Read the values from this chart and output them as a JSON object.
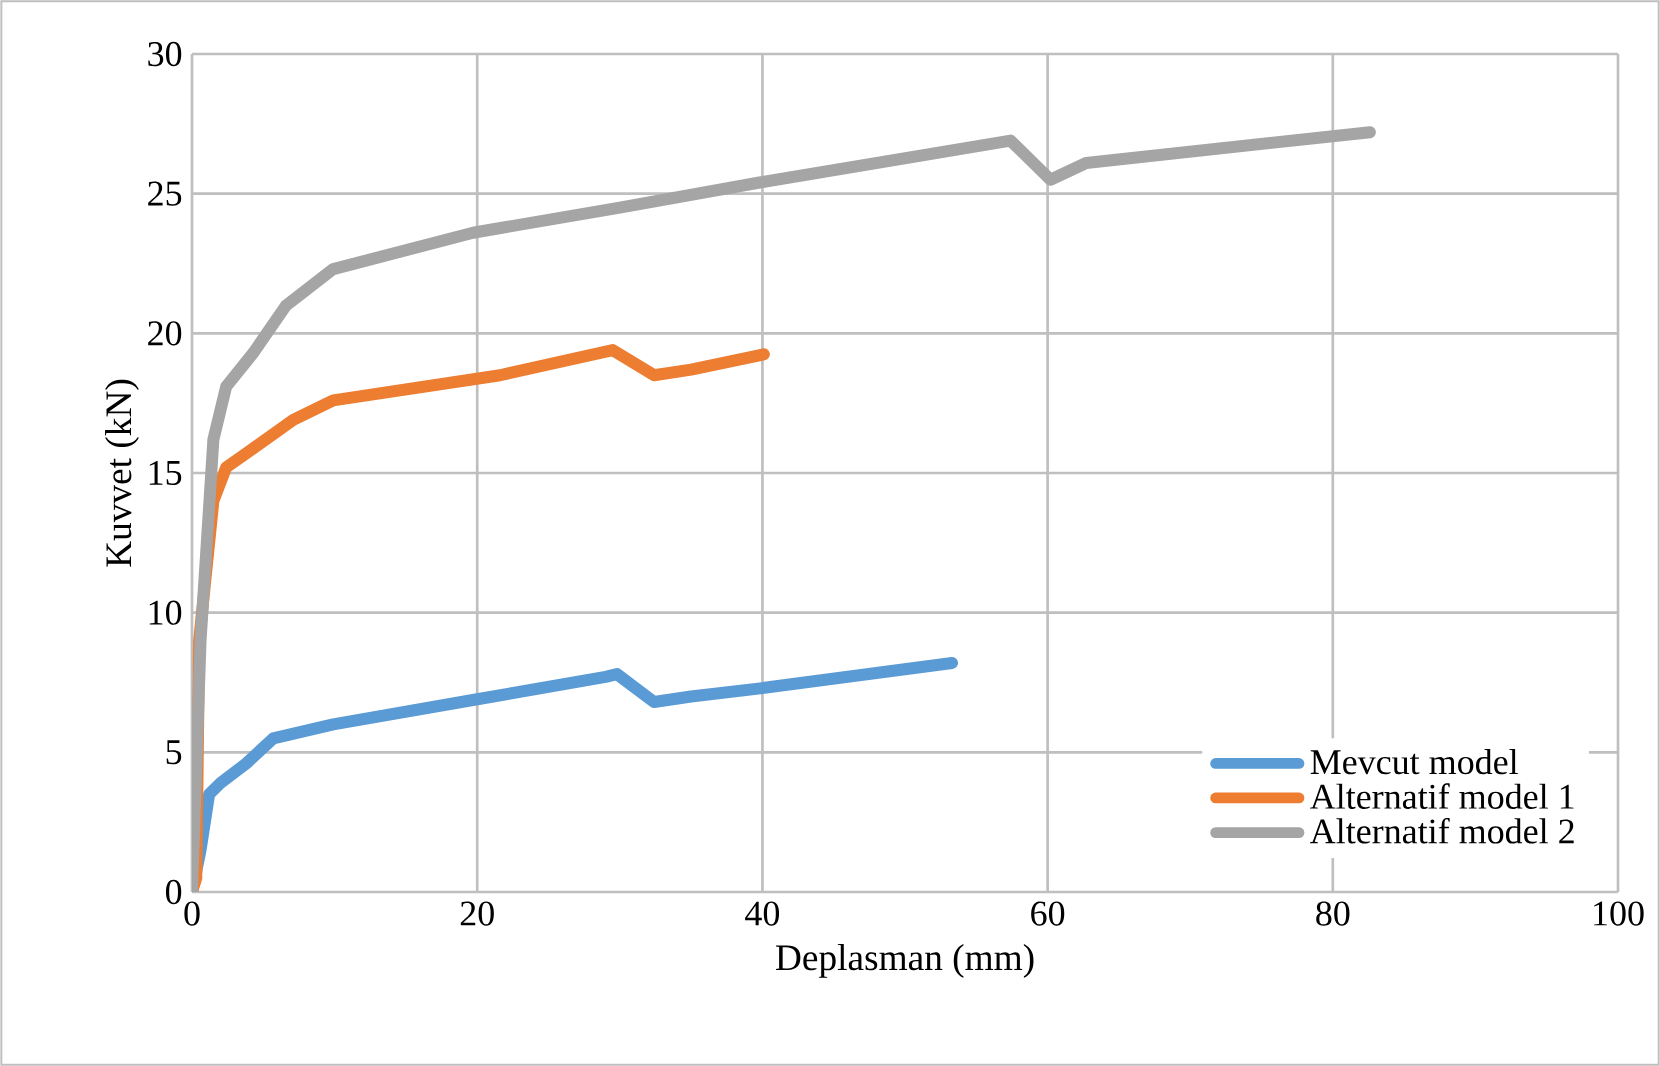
{
  "chart_data": {
    "type": "line",
    "xlabel": "Deplasman (mm)",
    "ylabel": "Kuvvet (kN)",
    "xlim": [
      0,
      100
    ],
    "xticks": [
      0,
      20,
      40,
      60,
      80,
      100
    ],
    "ylim": [
      0,
      30
    ],
    "yticks": [
      0,
      5,
      10,
      15,
      20,
      25,
      30
    ],
    "grid": true,
    "legend": "bottom right",
    "marker": "none",
    "line_style": "solid",
    "series": [
      {
        "name": "Mevcut model",
        "color": "#5b9bd5",
        "x": [
          0,
          0.6,
          1.2,
          2,
          3.8,
          5.7,
          9.9,
          20,
          29,
          29.8,
          32.4,
          35,
          40,
          53.3
        ],
        "values": [
          0,
          1.5,
          3.5,
          3.9,
          4.6,
          5.5,
          6.0,
          6.9,
          7.7,
          7.8,
          6.8,
          7.0,
          7.3,
          8.2
        ]
      },
      {
        "name": "Alternatif model 1",
        "color": "#ed7d31",
        "x": [
          0,
          0.3,
          0.5,
          1.5,
          2.4,
          3.8,
          7.1,
          9.9,
          21.6,
          29.5,
          32.4,
          35,
          40.1
        ],
        "values": [
          0,
          0.5,
          9.0,
          14.0,
          15.2,
          15.7,
          16.9,
          17.6,
          18.5,
          19.4,
          18.5,
          18.7,
          19.25
        ]
      },
      {
        "name": "Alternatif model 2",
        "color": "#a5a5a5",
        "x": [
          0,
          0.6,
          1.5,
          2.4,
          4.3,
          6.6,
          9.9,
          19.7,
          30,
          39.8,
          57.4,
          60.2,
          62.7,
          82.6
        ],
        "values": [
          0,
          9.0,
          16.2,
          18.1,
          19.3,
          21.0,
          22.3,
          23.6,
          24.5,
          25.4,
          26.9,
          25.5,
          26.1,
          27.2
        ]
      }
    ]
  }
}
